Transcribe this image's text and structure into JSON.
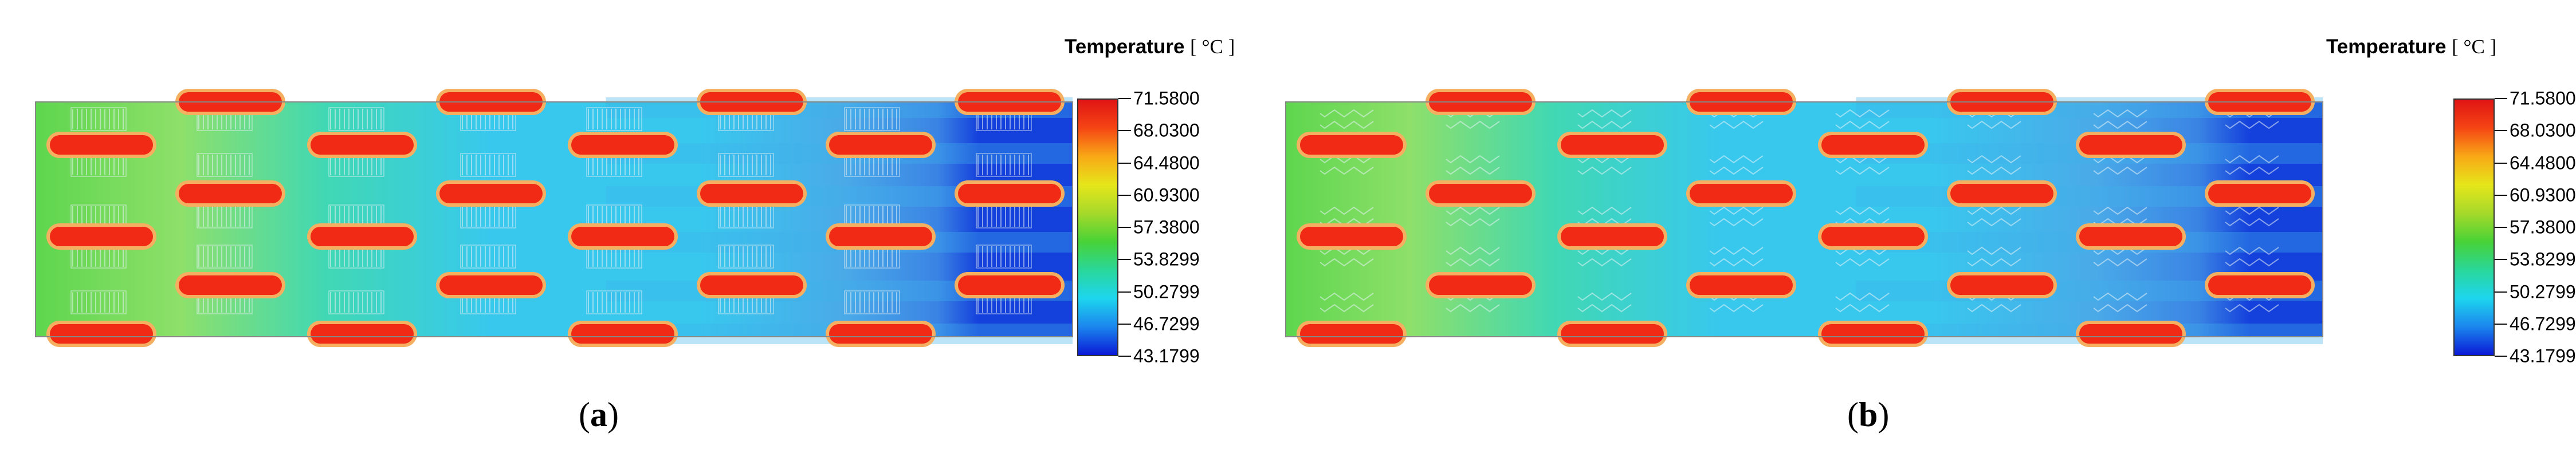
{
  "colors": {
    "hot": "#f02a14",
    "ring": "#f4b060",
    "green": "#5ed64e",
    "lightgreen": "#8ee06a",
    "teal": "#40d8b4",
    "cyan": "#38c8ee",
    "lightblue": "#4aaae8",
    "blue": "#1440dc",
    "legend_gradient": [
      "#0a1ad6",
      "#1b86ee",
      "#1dd6ee",
      "#2ad79a",
      "#48d236",
      "#a6d92a",
      "#e6e61a",
      "#f9a816",
      "#f54514",
      "#e01414"
    ]
  },
  "panels": [
    {
      "id": "a",
      "caption": "a",
      "legend_title": "Temperature",
      "legend_unit": "[ °C ]",
      "legend_ticks": [
        "71.5800",
        "68.0300",
        "64.4800",
        "60.9300",
        "57.3800",
        "53.8299",
        "50.2799",
        "46.7299",
        "43.1799"
      ],
      "fin_style": "louvered"
    },
    {
      "id": "b",
      "caption": "b",
      "legend_title": "Temperature",
      "legend_unit": "[ °C ]",
      "legend_ticks": [
        "71.5800",
        "68.0300",
        "64.4800",
        "60.9300",
        "57.3800",
        "53.8299",
        "50.2799",
        "46.7299",
        "43.1799"
      ],
      "fin_style": "wavy"
    }
  ]
}
